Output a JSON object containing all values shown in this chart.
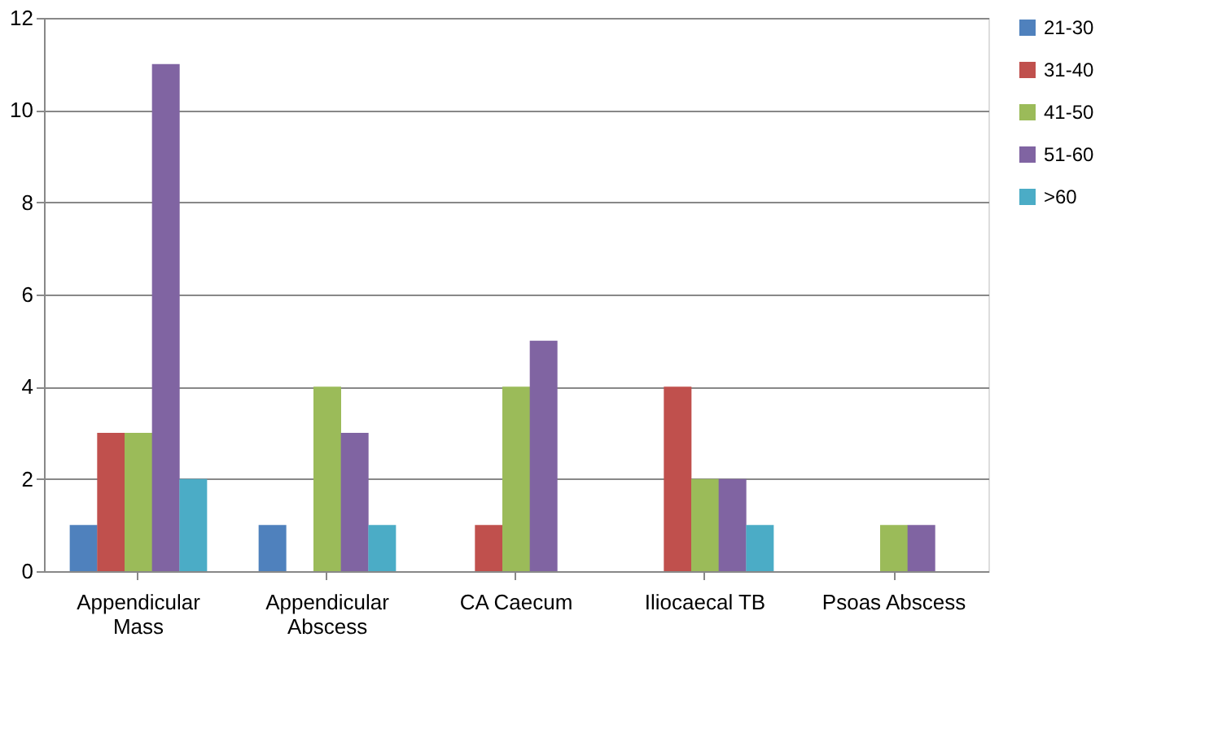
{
  "chart_data": {
    "type": "bar",
    "categories": [
      "Appendicular Mass",
      "Appendicular Abscess",
      "CA Caecum",
      "Iliocaecal TB",
      "Psoas Abscess"
    ],
    "series": [
      {
        "name": "21-30",
        "color": "#4f81bd",
        "values": [
          1,
          1,
          null,
          null,
          null
        ]
      },
      {
        "name": "31-40",
        "color": "#c0504d",
        "values": [
          3,
          null,
          1,
          4,
          null
        ]
      },
      {
        "name": "41-50",
        "color": "#9bbb59",
        "values": [
          3,
          4,
          4,
          2,
          1
        ]
      },
      {
        "name": "51-60",
        "color": "#8064a2",
        "values": [
          11,
          3,
          5,
          2,
          1
        ]
      },
      {
        "name": ">60",
        "color": "#4bacc6",
        "values": [
          2,
          1,
          null,
          1,
          null
        ]
      }
    ],
    "ylim": [
      0,
      12
    ],
    "yticks": [
      0,
      2,
      4,
      6,
      8,
      10,
      12
    ],
    "grid": "y",
    "legend": "right"
  }
}
